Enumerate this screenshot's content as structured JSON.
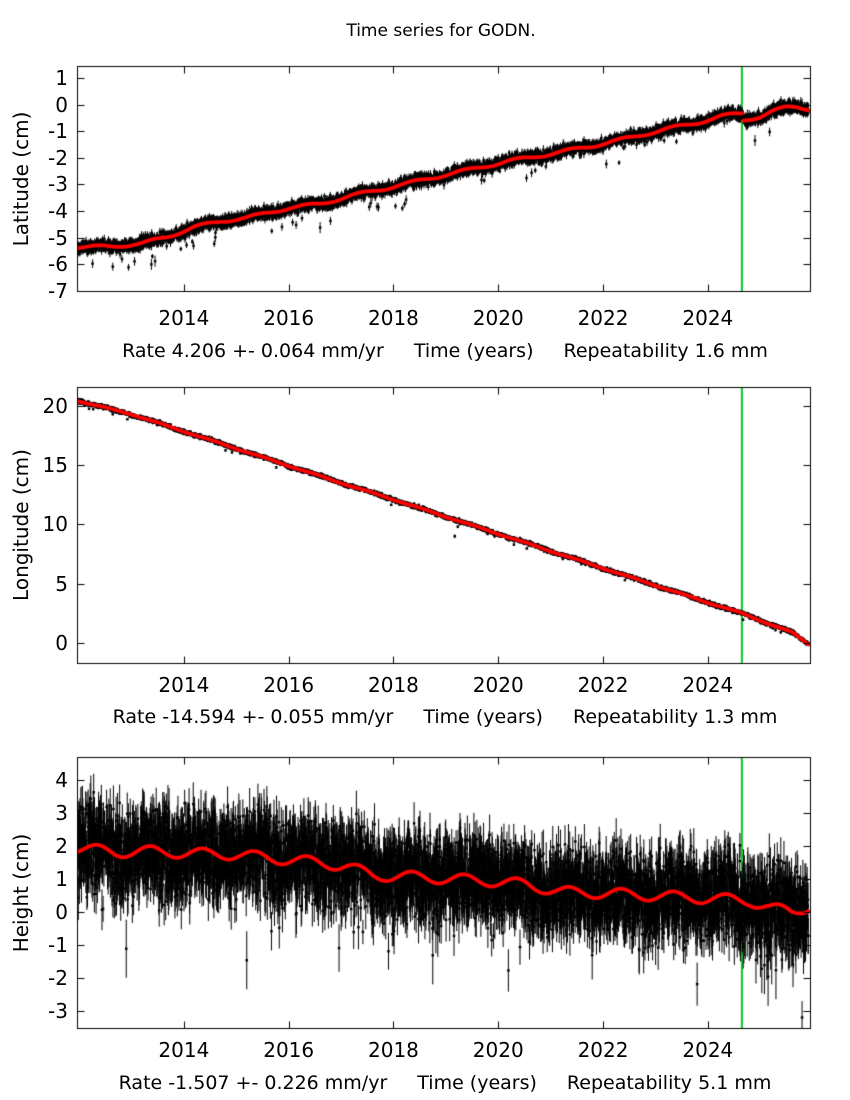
{
  "figure": {
    "title": "Time series for GODN.",
    "background": "#ffffff",
    "text_color": "#000000"
  },
  "chart_data": [
    {
      "type": "scatter",
      "name": "latitude",
      "ylabel": "Latitude (cm)",
      "xlabel_parts": {
        "rate": "Rate 4.206 +- 0.064 mm/yr",
        "time": "Time (years)",
        "repeatability": "Repeatability 1.6 mm"
      },
      "xlim": [
        2011.96,
        2025.95
      ],
      "ylim": [
        -7.0,
        1.45
      ],
      "xticks": [
        2014,
        2016,
        2018,
        2020,
        2022,
        2024
      ],
      "yticks": [
        1,
        0,
        -1,
        -2,
        -3,
        -4,
        -5,
        -6,
        -7
      ],
      "event_line_x": 2024.65,
      "data_start": 2011.96,
      "data_end": 2025.92,
      "n_points": 4600,
      "noise_std": 0.11,
      "errorbar_halflen": 0.13,
      "seasonal_amplitude": 0.055,
      "seasonal_phase": 0.12,
      "low_tail": {
        "rate": 0.012,
        "depth": 0.6
      },
      "seed": 101,
      "trend_segments": [
        [
          [
            2011.96,
            -5.35
          ],
          [
            2012.6,
            -5.33
          ],
          [
            2013.2,
            -5.22
          ],
          [
            2013.7,
            -4.95
          ],
          [
            2014.2,
            -4.6
          ],
          [
            2014.7,
            -4.38
          ],
          [
            2015.2,
            -4.25
          ],
          [
            2016.0,
            -3.88
          ],
          [
            2016.6,
            -3.73
          ],
          [
            2017.2,
            -3.42
          ],
          [
            2018.0,
            -3.08
          ],
          [
            2018.8,
            -2.72
          ],
          [
            2019.5,
            -2.42
          ],
          [
            2020.2,
            -2.12
          ],
          [
            2021.0,
            -1.85
          ],
          [
            2021.8,
            -1.55
          ],
          [
            2022.5,
            -1.25
          ],
          [
            2023.2,
            -0.92
          ],
          [
            2023.8,
            -0.68
          ],
          [
            2024.3,
            -0.42
          ],
          [
            2024.65,
            -0.32
          ]
        ],
        [
          [
            2024.68,
            -0.58
          ],
          [
            2025.0,
            -0.45
          ],
          [
            2025.25,
            -0.25
          ],
          [
            2025.5,
            -0.1
          ],
          [
            2025.7,
            -0.07
          ],
          [
            2025.92,
            -0.16
          ]
        ]
      ],
      "outliers": [
        [
          2013.38,
          -6.0
        ],
        [
          2013.45,
          -5.88
        ],
        [
          2016.6,
          -4.62
        ],
        [
          2024.9,
          -1.35
        ]
      ],
      "colors": {
        "points": "#000000",
        "trend": "#ff0000",
        "event_line": "#00cc22"
      }
    },
    {
      "type": "scatter",
      "name": "longitude",
      "ylabel": "Longitude (cm)",
      "xlabel_parts": {
        "rate": "Rate -14.594 +- 0.055 mm/yr",
        "time": "Time (years)",
        "repeatability": "Repeatability 1.3 mm"
      },
      "xlim": [
        2011.96,
        2025.95
      ],
      "ylim": [
        -1.7,
        21.6
      ],
      "xticks": [
        2014,
        2016,
        2018,
        2020,
        2022,
        2024
      ],
      "yticks": [
        0,
        5,
        10,
        15,
        20
      ],
      "event_line_x": 2024.65,
      "data_start": 2011.96,
      "data_end": 2025.92,
      "n_points": 4600,
      "noise_std": 0.085,
      "errorbar_halflen": 0.1,
      "seasonal_amplitude": 0.04,
      "seasonal_phase": 0.3,
      "low_tail": {
        "rate": 0.004,
        "depth": 0.35
      },
      "seed": 202,
      "trend_segments": [
        [
          [
            2011.96,
            20.45
          ],
          [
            2013.0,
            19.3
          ],
          [
            2014.0,
            17.85
          ],
          [
            2015.0,
            16.4
          ],
          [
            2016.0,
            14.95
          ],
          [
            2017.0,
            13.5
          ],
          [
            2018.0,
            12.1
          ],
          [
            2019.0,
            10.65
          ],
          [
            2020.0,
            9.2
          ],
          [
            2021.0,
            7.75
          ],
          [
            2022.0,
            6.3
          ],
          [
            2023.0,
            4.85
          ],
          [
            2024.0,
            3.4
          ],
          [
            2024.65,
            2.5
          ],
          [
            2025.2,
            1.55
          ],
          [
            2025.6,
            0.9
          ],
          [
            2025.92,
            -0.1
          ]
        ]
      ],
      "outliers": [
        [
          2013.4,
          18.6
        ],
        [
          2019.17,
          9.0
        ]
      ],
      "colors": {
        "points": "#000000",
        "trend": "#ff0000",
        "event_line": "#00cc22"
      }
    },
    {
      "type": "scatter",
      "name": "height",
      "ylabel": "Height (cm)",
      "xlabel_parts": {
        "rate": "Rate -1.507 +- 0.226 mm/yr",
        "time": "Time (years)",
        "repeatability": "Repeatability 5.1 mm"
      },
      "xlim": [
        2011.96,
        2025.95
      ],
      "ylim": [
        -3.5,
        4.7
      ],
      "xticks": [
        2014,
        2016,
        2018,
        2020,
        2022,
        2024
      ],
      "yticks": [
        4,
        3,
        2,
        1,
        0,
        -1,
        -2,
        -3
      ],
      "event_line_x": 2024.65,
      "data_start": 2011.96,
      "data_end": 2025.92,
      "n_points": 4600,
      "noise_std": 0.62,
      "errorbar_halflen": 0.55,
      "seasonal_amplitude": 0.16,
      "seasonal_phase": 0.1,
      "low_tail": {
        "rate": 0.01,
        "depth": 1.2
      },
      "seed": 303,
      "trend_segments": [
        [
          [
            2011.96,
            1.95
          ],
          [
            2012.7,
            1.82
          ],
          [
            2013.4,
            1.85
          ],
          [
            2014.2,
            1.78
          ],
          [
            2015.0,
            1.75
          ],
          [
            2015.8,
            1.62
          ],
          [
            2016.5,
            1.52
          ],
          [
            2017.1,
            1.4
          ],
          [
            2017.6,
            1.12
          ],
          [
            2018.3,
            1.08
          ],
          [
            2019.0,
            1.02
          ],
          [
            2019.8,
            0.95
          ],
          [
            2020.5,
            0.85
          ],
          [
            2021.2,
            0.62
          ],
          [
            2022.0,
            0.58
          ],
          [
            2022.8,
            0.52
          ],
          [
            2023.6,
            0.45
          ],
          [
            2024.3,
            0.4
          ],
          [
            2024.8,
            0.35
          ],
          [
            2025.2,
            0.12
          ],
          [
            2025.6,
            0.02
          ],
          [
            2025.92,
            0.18
          ]
        ]
      ],
      "outliers": [
        [
          2012.9,
          -1.1
        ],
        [
          2015.2,
          -1.45
        ],
        [
          2018.75,
          -1.3
        ],
        [
          2025.08,
          -1.6
        ],
        [
          2025.15,
          -1.95
        ],
        [
          2025.22,
          -1.3
        ],
        [
          2025.3,
          -1.75
        ]
      ],
      "colors": {
        "points": "#000000",
        "trend": "#ff0000",
        "event_line": "#00cc22"
      }
    }
  ]
}
